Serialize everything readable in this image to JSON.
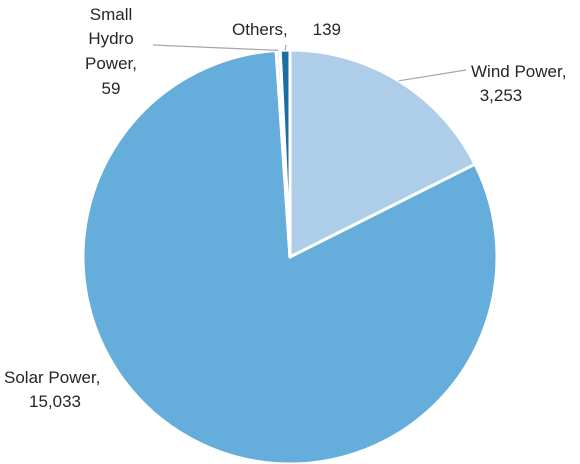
{
  "chart_data": {
    "type": "pie",
    "title": "",
    "slices": [
      {
        "label": "Wind Power",
        "value": 3253,
        "value_text": "3,253",
        "color": "#aecde8"
      },
      {
        "label": "Solar Power",
        "value": 15033,
        "value_text": "15,033",
        "color": "#65addb"
      },
      {
        "label": "Small Hydro Power",
        "value": 59,
        "value_text": "59",
        "color": "#e3eef8"
      },
      {
        "label": "Others",
        "value": 139,
        "value_text": "139",
        "color": "#1b6da5"
      }
    ],
    "start_angle": "12 o'clock",
    "direction": "clockwise",
    "slice_border_color": "#ffffff",
    "legend": "none",
    "label_style": "category name and value, outside slices with leader lines"
  }
}
